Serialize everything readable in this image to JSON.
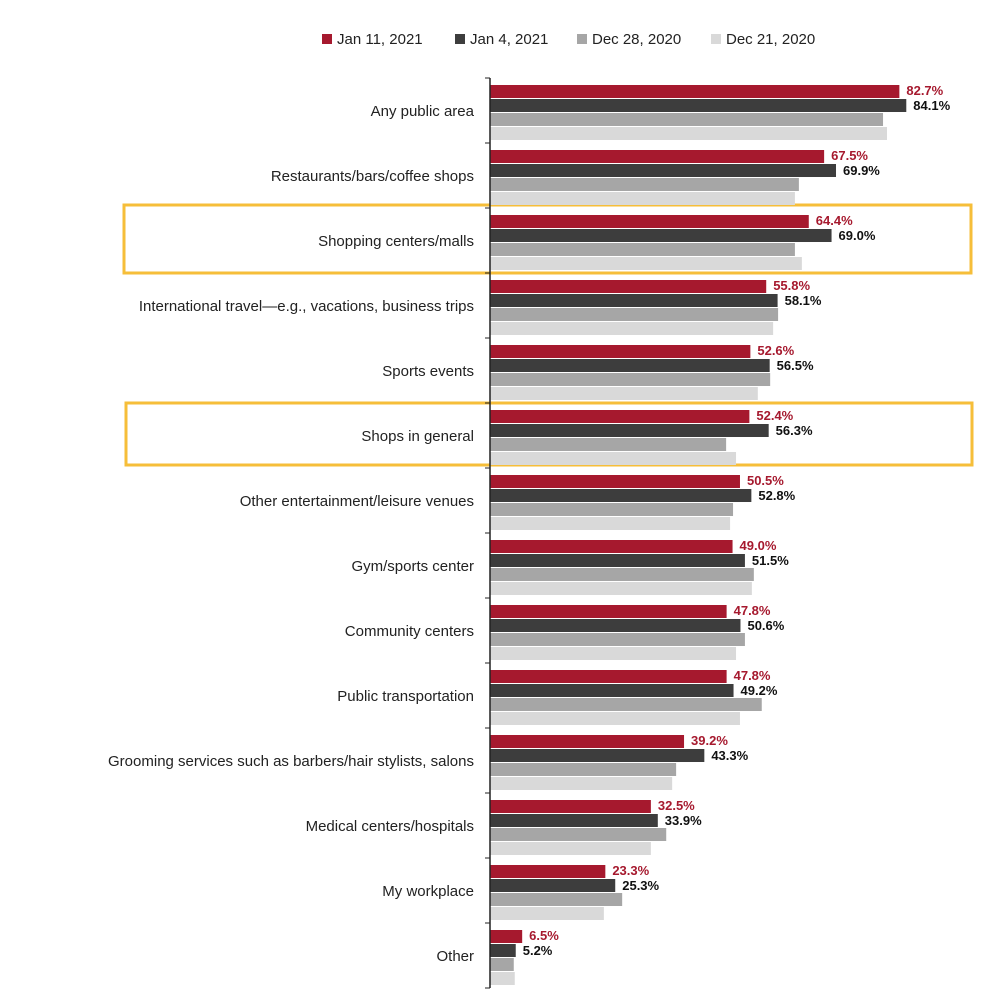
{
  "chart_data": {
    "type": "hbar",
    "categories": [
      "Any public area",
      "Restaurants/bars/coffee shops",
      "Shopping centers/malls",
      "International travel—e.g., vacations, business trips",
      "Sports events",
      "Shops in general",
      "Other entertainment/leisure venues",
      "Gym/sports center",
      "Community centers",
      "Public transportation",
      "Grooming services such as barbers/hair stylists, salons",
      "Medical centers/hospitals",
      "My workplace",
      "Other"
    ],
    "series": [
      {
        "name": "Jan 11, 2021",
        "color": "#a6192e",
        "values": [
          82.7,
          67.5,
          64.4,
          55.8,
          52.6,
          52.4,
          50.5,
          49.0,
          47.8,
          47.8,
          39.2,
          32.5,
          23.3,
          6.5
        ],
        "value_labels": [
          "82.7%",
          "67.5%",
          "64.4%",
          "55.8%",
          "52.6%",
          "52.4%",
          "50.5%",
          "49.0%",
          "47.8%",
          "47.8%",
          "39.2%",
          "32.5%",
          "23.3%",
          "6.5%"
        ]
      },
      {
        "name": "Jan 4, 2021",
        "color": "#3d3d3d",
        "values": [
          84.1,
          69.9,
          69.0,
          58.1,
          56.5,
          56.3,
          52.8,
          51.5,
          50.6,
          49.2,
          43.3,
          33.9,
          25.3,
          5.2
        ],
        "value_labels": [
          "84.1%",
          "69.9%",
          "69.0%",
          "58.1%",
          "56.5%",
          "56.3%",
          "52.8%",
          "51.5%",
          "50.6%",
          "49.2%",
          "43.3%",
          "33.9%",
          "25.3%",
          "5.2%"
        ]
      },
      {
        "name": "Dec 28, 2020",
        "color": "#a6a6a6",
        "values": [
          79.4,
          62.4,
          61.6,
          58.2,
          56.6,
          47.7,
          49.1,
          53.3,
          51.5,
          54.9,
          37.6,
          35.6,
          26.7,
          4.8
        ]
      },
      {
        "name": "Dec 21, 2020",
        "color": "#d9d9d9",
        "values": [
          80.2,
          61.6,
          63.0,
          57.2,
          54.1,
          49.7,
          48.5,
          52.9,
          49.7,
          50.5,
          36.8,
          32.5,
          23.0,
          5.0
        ]
      }
    ],
    "xlim": [
      0,
      100
    ]
  }
}
